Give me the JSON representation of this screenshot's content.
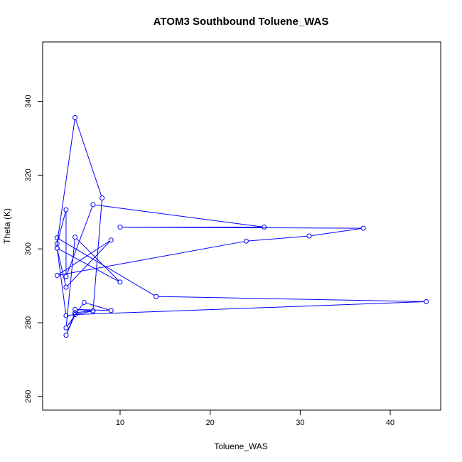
{
  "chart_data": {
    "type": "line",
    "title": "ATOM3 Southbound Toluene_WAS",
    "xlabel": "Toluene_WAS",
    "ylabel": "Theta (K)",
    "xlim": [
      1.4,
      45.6
    ],
    "ylim": [
      256.3,
      356.1
    ],
    "xticks": [
      10,
      20,
      30,
      40
    ],
    "yticks": [
      260,
      280,
      300,
      320,
      340
    ],
    "grid": false,
    "legend": "none",
    "colors": {
      "series": "#0000ff",
      "axis": "#000000"
    },
    "series": [
      {
        "marker": "open-circle",
        "points": [
          [
            5,
            282.2
          ],
          [
            4,
            276.6
          ],
          [
            5,
            282.7
          ],
          [
            7,
            283.2
          ],
          [
            5,
            283.6
          ],
          [
            9,
            283.3
          ],
          [
            6,
            285.5
          ],
          [
            4,
            278.6
          ],
          [
            5,
            303.2
          ],
          [
            10,
            291.0
          ],
          [
            3,
            300.2
          ],
          [
            4,
            289.6
          ],
          [
            9,
            302.4
          ],
          [
            3,
            292.8
          ],
          [
            24,
            302.1
          ],
          [
            31,
            303.5
          ],
          [
            37,
            305.6
          ],
          [
            10,
            305.9
          ],
          [
            26,
            305.9
          ],
          [
            7,
            312.0
          ],
          [
            4,
            292.5
          ],
          [
            4,
            310.6
          ],
          [
            3,
            301.4
          ],
          [
            5,
            335.6
          ],
          [
            8,
            313.8
          ],
          [
            7,
            283.2
          ],
          [
            5,
            282.2
          ],
          [
            4,
            281.9
          ],
          [
            3,
            300.2
          ],
          [
            3,
            303.0
          ],
          [
            14,
            287.1
          ],
          [
            44,
            285.7
          ],
          [
            5,
            282.2
          ]
        ]
      }
    ]
  }
}
